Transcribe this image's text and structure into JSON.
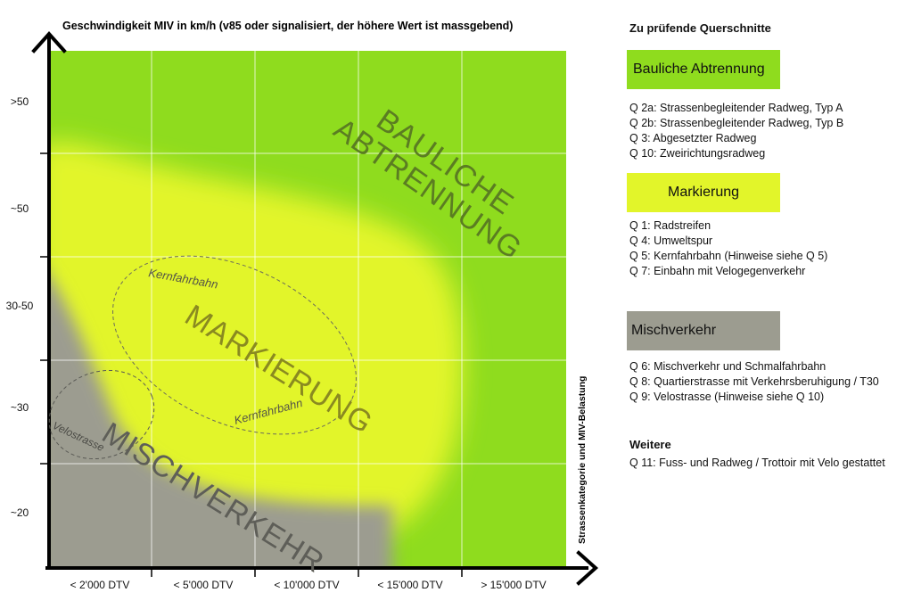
{
  "colors": {
    "bauliche": "#8fdc1e",
    "markierung": "#e2f52a",
    "mischverkehr": "#9c9c90",
    "axis": "#000000"
  },
  "diagram": {
    "y_axis_title": "Geschwindigkeit MIV in km/h (v85 oder signalisiert, der höhere Wert ist massgebend)",
    "x_axis_title": "Strassenkategorie und  MIV-Belastung",
    "y_labels": [
      ">50",
      "~50",
      "30-50",
      "~30",
      "~20"
    ],
    "x_labels": [
      "< 2'000 DTV",
      "< 5'000 DTV",
      "< 10'000 DTV",
      "< 15'000 DTV",
      "> 15'000 DTV"
    ],
    "zone_labels": {
      "bauliche_line1": "BAULICHE",
      "bauliche_line2": "ABTRENNUNG",
      "markierung": "MARKIERUNG",
      "mischverkehr": "MISCHVERKEHR"
    },
    "ellipse_labels": {
      "kernfahrbahn_top": "Kernfahrbahn",
      "kernfahrbahn_bottom": "Kernfahrbahn",
      "velostrasse": "Velostrasse"
    }
  },
  "legend": {
    "title": "Zu prüfende Querschnitte",
    "bauliche": {
      "label": "Bauliche Abtrennung",
      "items": [
        "Q 2a: Strassenbegleitender Radweg, Typ A",
        "Q 2b: Strassenbegleitender Radweg, Typ B",
        "Q 3: Abgesetzter Radweg",
        "Q 10: Zweirichtungsradweg"
      ]
    },
    "markierung": {
      "label": "Markierung",
      "items": [
        "Q 1: Radstreifen",
        "Q 4: Umweltspur",
        "Q 5: Kernfahrbahn (Hinweise siehe Q 5)",
        "Q 7: Einbahn mit Velogegenverkehr"
      ]
    },
    "mischverkehr": {
      "label": "Mischverkehr",
      "items": [
        "Q 6: Mischverkehr und Schmalfahrbahn",
        "Q 8: Quartierstrasse mit Verkehrsberuhigung / T30",
        "Q 9: Velostrasse (Hinweise siehe Q 10)"
      ]
    },
    "weitere": {
      "title": "Weitere",
      "items": [
        "Q 11: Fuss- und Radweg / Trottoir mit Velo gestattet"
      ]
    }
  }
}
